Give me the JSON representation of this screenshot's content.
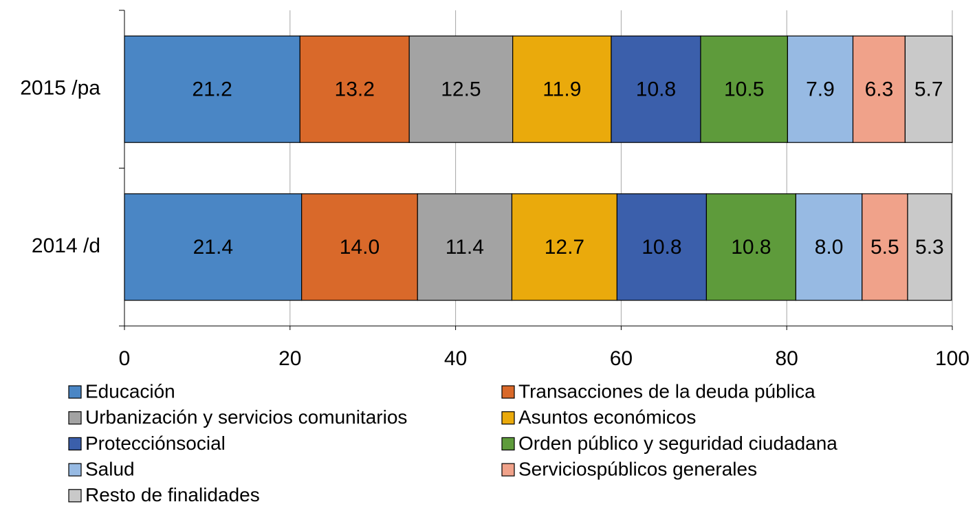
{
  "chart_data": {
    "type": "stacked_barh",
    "categories": [
      "2015 /pa",
      "2014 /d"
    ],
    "series": [
      {
        "name": "Educación",
        "color": "#4a86c5",
        "values": [
          21.2,
          21.4
        ],
        "value_labels": [
          "21.2",
          "21.4"
        ]
      },
      {
        "name": "Transacciones de la deuda pública",
        "color": "#d9692a",
        "values": [
          13.2,
          14.0
        ],
        "value_labels": [
          "13.2",
          "14.0"
        ]
      },
      {
        "name": "Urbanización y servicios comunitarios",
        "color": "#a3a3a3",
        "values": [
          12.5,
          11.4
        ],
        "value_labels": [
          "12.5",
          "11.4"
        ]
      },
      {
        "name": "Asuntos económicos",
        "color": "#eaaa0c",
        "values": [
          11.9,
          12.7
        ],
        "value_labels": [
          "11.9",
          "12.7"
        ]
      },
      {
        "name": "Protecciónsocial",
        "color": "#3b5fab",
        "values": [
          10.8,
          10.8
        ],
        "value_labels": [
          "10.8",
          "10.8"
        ]
      },
      {
        "name": "Orden público y seguridad ciudadana",
        "color": "#5e9b3b",
        "values": [
          10.5,
          10.8
        ],
        "value_labels": [
          "10.5",
          "10.8"
        ]
      },
      {
        "name": "Salud",
        "color": "#97bae3",
        "values": [
          7.9,
          8.0
        ],
        "value_labels": [
          "7.9",
          "8.0"
        ]
      },
      {
        "name": "Serviciospúblicos generales",
        "color": "#f0a28a",
        "values": [
          6.3,
          5.5
        ],
        "value_labels": [
          "6.3",
          "5.5"
        ]
      },
      {
        "name": "Resto de finalidades",
        "color": "#c9c9c9",
        "values": [
          5.7,
          5.3
        ],
        "value_labels": [
          "5.7",
          "5.3"
        ]
      }
    ],
    "xlim": [
      0,
      100
    ],
    "xticks": [
      0,
      20,
      40,
      60,
      80,
      100
    ],
    "grid": true,
    "legend": "bottom"
  }
}
